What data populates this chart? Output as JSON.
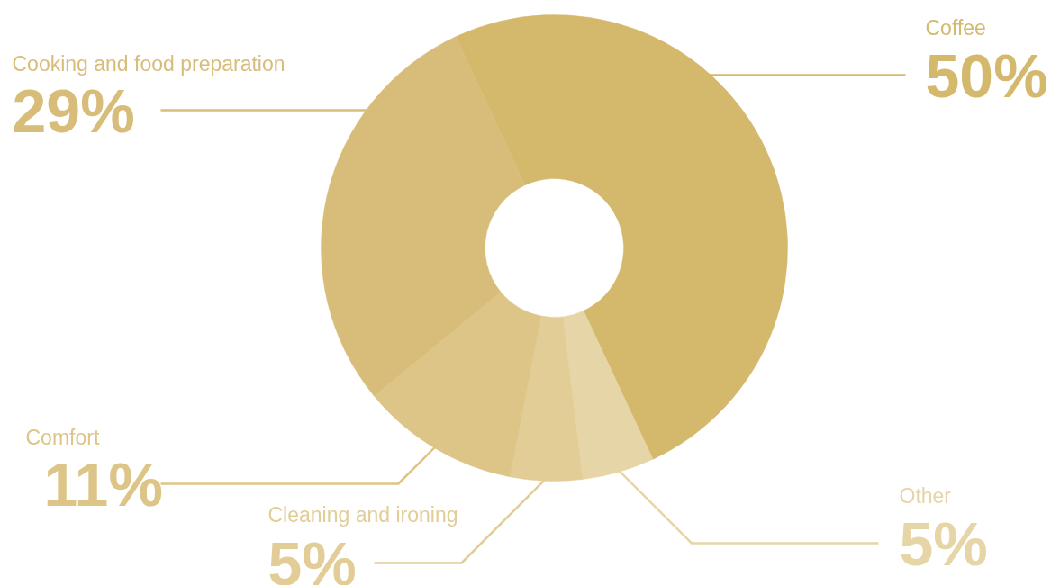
{
  "chart_data": {
    "type": "donut",
    "categories": [
      "Coffee",
      "Other",
      "Cleaning and ironing",
      "Comfort",
      "Cooking and food preparation"
    ],
    "values": [
      50,
      5,
      5,
      11,
      29
    ],
    "value_labels": [
      "50%",
      "5%",
      "5%",
      "11%",
      "29%"
    ],
    "colors": [
      "#d4b86c",
      "#e6d5a6",
      "#e2cd97",
      "#ddc588",
      "#d8bd7a"
    ]
  }
}
